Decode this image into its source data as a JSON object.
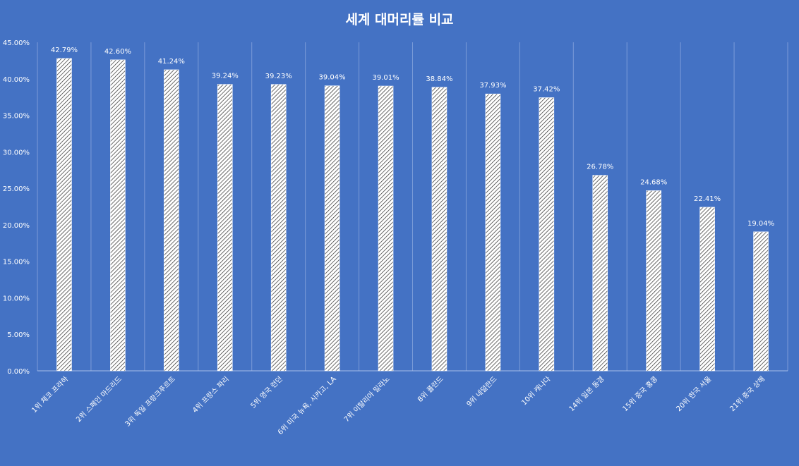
{
  "chart_data": {
    "type": "bar",
    "title": "세계 대머리률 비교",
    "xlabel": "",
    "ylabel": "",
    "ylim": [
      0,
      45
    ],
    "y_ticks": [
      "0.00%",
      "5.00%",
      "10.00%",
      "15.00%",
      "20.00%",
      "25.00%",
      "30.00%",
      "35.00%",
      "40.00%",
      "45.00%"
    ],
    "grid": "vertical",
    "legend": "none",
    "bar_fill": "white with diagonal hatch",
    "background_color": "#4472C4",
    "text_color": "#FFFFFF",
    "categories": [
      "1위 체코 프라하",
      "2위 스페인 마드리드",
      "3위 독일 프랑크푸르트",
      "4위 프랑스 파리",
      "5위 영국 런던",
      "6위 미국 뉴욕, 시카고, LA",
      "7위 이탈리아 밀라노",
      "8위 폴란드",
      "9위 네덜란드",
      "10위 캐나다",
      "14위 일본 동경",
      "15위 중국 홍콩",
      "20위 한국 서울",
      "21위 중국 상해"
    ],
    "values": [
      42.79,
      42.6,
      41.24,
      39.24,
      39.23,
      39.04,
      39.01,
      38.84,
      37.93,
      37.42,
      26.78,
      24.68,
      22.41,
      19.04
    ],
    "data_labels": [
      "42.79%",
      "42.60%",
      "41.24%",
      "39.24%",
      "39.23%",
      "39.04%",
      "39.01%",
      "38.84%",
      "37.93%",
      "37.42%",
      "26.78%",
      "24.68%",
      "22.41%",
      "19.04%"
    ]
  }
}
